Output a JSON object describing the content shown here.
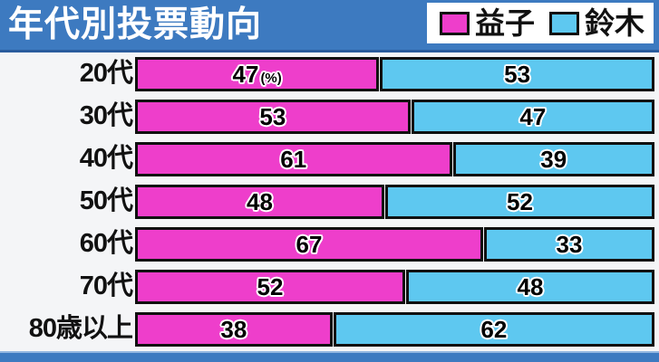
{
  "title": "年代別投票動向",
  "legend": [
    {
      "label": "益子",
      "color": "#ee3ecb"
    },
    {
      "label": "鈴木",
      "color": "#5ec8f0"
    }
  ],
  "unit_suffix": "(%)",
  "colors": {
    "header_bg": "#3d7ac0",
    "header_border": "#2a5c9d",
    "footer_top_edge": "#93b7e0",
    "page_bg": "#f4f5f7",
    "bar_border": "#101010",
    "mashiko_magenta": "#ee3ecb",
    "suzuki_blue": "#5ec8f0"
  },
  "chart_data": {
    "type": "bar",
    "orientation": "horizontal-stacked",
    "title": "年代別投票動向",
    "categories": [
      "20代",
      "30代",
      "40代",
      "50代",
      "60代",
      "70代",
      "80歳以上"
    ],
    "series": [
      {
        "name": "益子",
        "color": "#ee3ecb",
        "values": [
          47,
          53,
          61,
          48,
          67,
          52,
          38
        ]
      },
      {
        "name": "鈴木",
        "color": "#5ec8f0",
        "values": [
          53,
          47,
          39,
          52,
          33,
          48,
          62
        ]
      }
    ],
    "value_unit": "%",
    "unit_shown_on": "first bar of first row as (%)",
    "xlim": [
      0,
      100
    ],
    "grid": false,
    "legend_position": "top-right",
    "value_labels": "inside segments, black with white outline"
  }
}
